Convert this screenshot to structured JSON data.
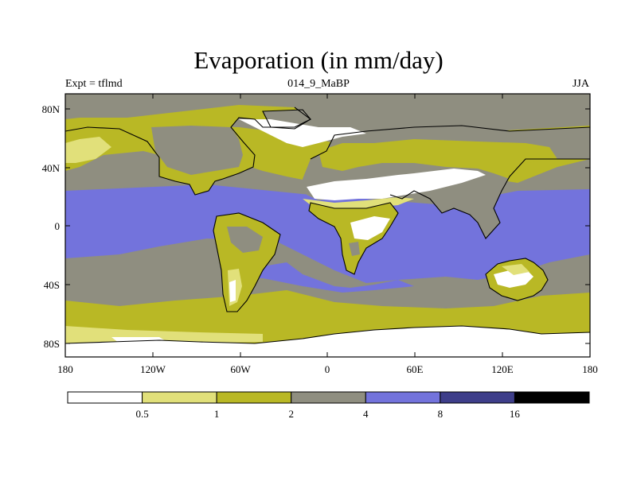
{
  "title": "Evaporation (in mm/day)",
  "subtitle_left": "Expt = tflmd",
  "subtitle_center": "014_9_MaBP",
  "subtitle_right": "JJA",
  "lat_ticks": [
    "80N",
    "40N",
    "0",
    "40S",
    "80S"
  ],
  "lon_ticks": [
    "180",
    "120W",
    "60W",
    "0",
    "60E",
    "120E",
    "180"
  ],
  "colorbar": {
    "levels": [
      "0.5",
      "1",
      "2",
      "4",
      "8",
      "16"
    ],
    "colors": [
      "#ffffff",
      "#e1e07a",
      "#b9b825",
      "#8f8e80",
      "#7373dc",
      "#3e3e8a",
      "#000000"
    ]
  },
  "colors": {
    "very_low": "#ffffff",
    "low": "#e1e07a",
    "mid_low": "#b9b825",
    "mid": "#8f8e80",
    "high": "#7373dc",
    "very_high": "#3e3e8a"
  }
}
